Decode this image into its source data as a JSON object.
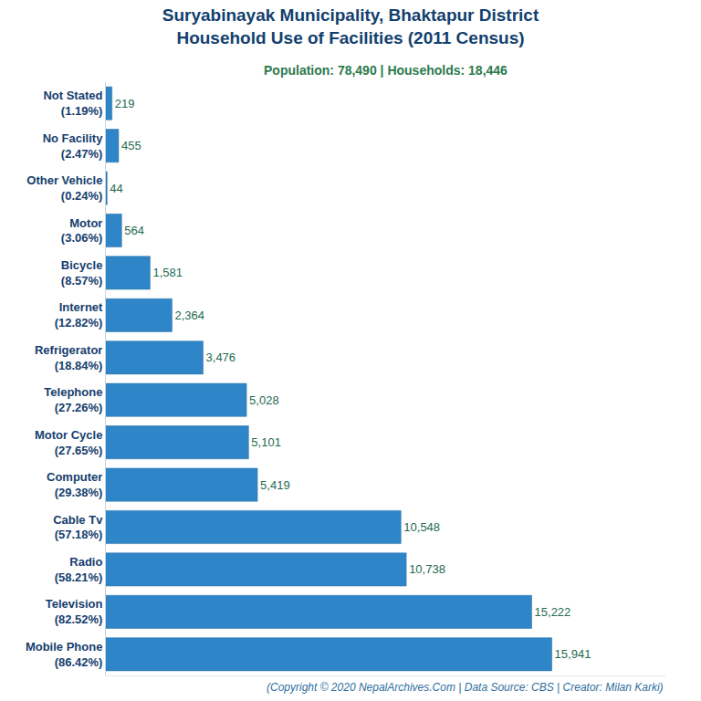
{
  "chart_data": {
    "type": "bar",
    "title": "Suryabinayak Municipality, Bhaktapur District\nHousehold Use of Facilities (2011 Census)",
    "subtitle": "Population: 78,490 | Households: 18,446",
    "annotations": [
      "(Copyright © 2020 NepalArchives.Com | Data Source: CBS | Creator: Milan Karki)"
    ],
    "orientation": "horizontal",
    "categories": [
      "Not Stated\n(1.19%)",
      "No Facility\n(2.47%)",
      "Other Vehicle\n(0.24%)",
      "Motor\n(3.06%)",
      "Bicycle\n(8.57%)",
      "Internet\n(12.82%)",
      "Refrigerator\n(18.84%)",
      "Telephone\n(27.26%)",
      "Motor Cycle\n(27.65%)",
      "Computer\n(29.38%)",
      "Cable Tv\n(57.18%)",
      "Radio\n(58.21%)",
      "Television\n(82.52%)",
      "Mobile Phone\n(86.42%)"
    ],
    "values": [
      219,
      455,
      44,
      564,
      1581,
      2364,
      3476,
      5028,
      5101,
      5419,
      10548,
      10738,
      15222,
      15941
    ],
    "value_labels": [
      "219",
      "455",
      "44",
      "564",
      "1,581",
      "2,364",
      "3,476",
      "5,028",
      "5,101",
      "5,419",
      "10,548",
      "10,738",
      "15,222",
      "15,941"
    ],
    "color": "#2e86c8",
    "xlim": [
      0,
      20000
    ],
    "xticks": [],
    "grid": false,
    "data_labels": true,
    "tick_labels": "y"
  }
}
